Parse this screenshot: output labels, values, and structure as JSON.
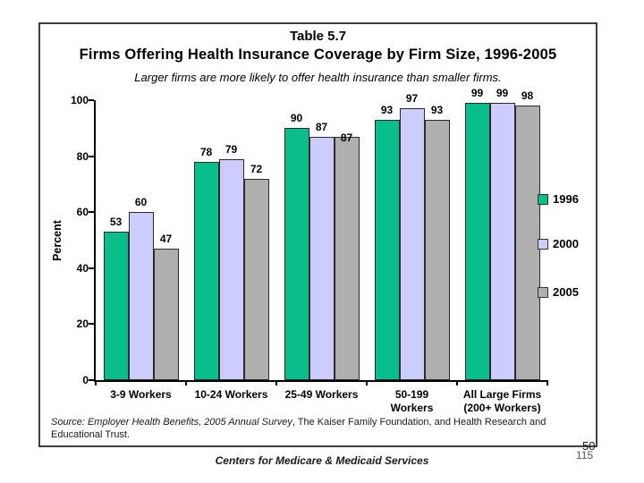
{
  "slide": {
    "title_small": "Table 5.7",
    "title_main": "Firms Offering Health Insurance Coverage by Firm Size, 1996-2005",
    "subtitle": "Larger firms are more likely to offer health insurance than smaller firms.",
    "source_italic": "Source: Employer Health Benefits, 2005 Annual Survey",
    "source_regular": ", The Kaiser Family Foundation, and Health Research and Educational Trust.",
    "footer": "Centers for Medicare & Medicaid Services",
    "page_number_top": "50",
    "page_number_bottom": "115"
  },
  "chart_data": {
    "type": "bar",
    "title": "Firms Offering Health Insurance Coverage by Firm Size, 1996-2005",
    "subtitle": "Larger firms are more likely to offer health insurance than smaller firms.",
    "categories": [
      "3-9 Workers",
      "10-24 Workers",
      "25-49 Workers",
      "50-199\nWorkers",
      "All Large Firms\n(200+ Workers)"
    ],
    "series": [
      {
        "name": "1996",
        "color": "#0abe8c",
        "values": [
          53,
          78,
          90,
          93,
          99
        ],
        "label_dy": [
          0,
          0,
          0,
          0,
          0
        ]
      },
      {
        "name": "2000",
        "color": "#ccccff",
        "values": [
          60,
          79,
          87,
          97,
          99
        ],
        "label_dy": [
          0,
          0,
          0,
          0,
          0
        ]
      },
      {
        "name": "2005",
        "color": "#afafaf",
        "values": [
          47,
          72,
          87,
          93,
          98
        ],
        "label_dy": [
          0,
          0,
          12,
          0,
          0
        ]
      }
    ],
    "xlabel": "",
    "ylabel": "Percent",
    "ylim": [
      0,
      100
    ],
    "yticks": [
      0,
      20,
      40,
      60,
      80,
      100
    ],
    "grid": false,
    "legend_position": "right",
    "bar_labels": true
  }
}
